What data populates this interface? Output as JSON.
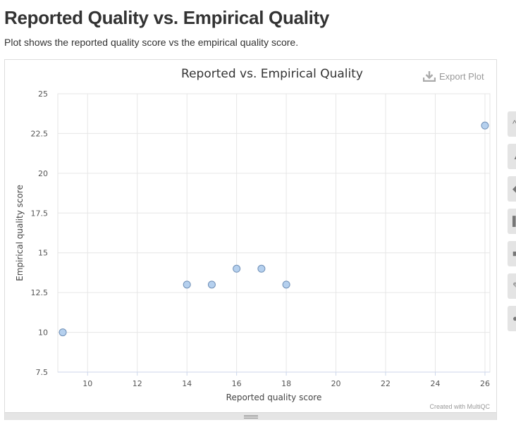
{
  "page": {
    "title": "Reported Quality vs. Empirical Quality",
    "description": "Plot shows the reported quality score vs the empirical quality score."
  },
  "toolbar": {
    "export_label": "Export Plot",
    "side_buttons": [
      "chevron-up-icon",
      "triangle-icon",
      "diamond-icon",
      "bar-icon",
      "square-icon",
      "brush-icon",
      "circle-icon"
    ]
  },
  "credit": "Created with MultiQC",
  "colors": {
    "marker_fill": "#b5d0ee",
    "marker_stroke": "#6f8fb6",
    "grid": "#e6e6e6",
    "axis": "#ccd6eb"
  },
  "chart_data": {
    "type": "scatter",
    "title": "Reported vs. Empirical Quality",
    "xlabel": "Reported quality score",
    "ylabel": "Empirical quality score",
    "xlim": [
      8.8,
      26.2
    ],
    "ylim": [
      7.5,
      25
    ],
    "xticks": [
      10,
      12,
      14,
      16,
      18,
      20,
      22,
      24,
      26
    ],
    "yticks": [
      7.5,
      10,
      12.5,
      15,
      17.5,
      20,
      22.5,
      25
    ],
    "grid": true,
    "points": [
      {
        "x": 9,
        "y": 10
      },
      {
        "x": 14,
        "y": 13
      },
      {
        "x": 15,
        "y": 13
      },
      {
        "x": 16,
        "y": 14
      },
      {
        "x": 17,
        "y": 14
      },
      {
        "x": 18,
        "y": 13
      },
      {
        "x": 26,
        "y": 23
      }
    ]
  }
}
